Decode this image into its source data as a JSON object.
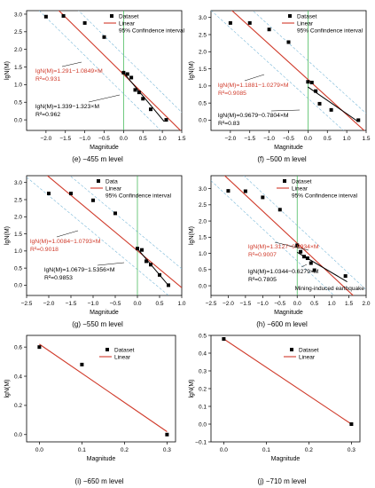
{
  "colors": {
    "data": "#000000",
    "linear": "#d03a2a",
    "ci": "#7ab8d8",
    "vline": "#34b34a",
    "annotation_red": "#d03a2a",
    "annotation_black": "#000000"
  },
  "chart_data": [
    {
      "id": "e",
      "type": "scatter",
      "caption": "(e) −455 m level",
      "xlabel": "Magnitude",
      "ylabel": "lgN(M)",
      "xlim": [
        -2.5,
        1.5
      ],
      "ylim": [
        -0.3,
        3.1
      ],
      "xticks": [
        -2.0,
        -1.5,
        -1.0,
        -0.5,
        0.0,
        0.5,
        1.0,
        1.5
      ],
      "yticks": [
        0.0,
        0.5,
        1.0,
        1.5,
        2.0,
        2.5,
        3.0
      ],
      "legend": [
        "Dataset",
        "Linear",
        "95% Confindence interval"
      ],
      "points": [
        [
          -2.0,
          2.93
        ],
        [
          -1.55,
          2.95
        ],
        [
          -1.0,
          2.75
        ],
        [
          -0.5,
          2.35
        ],
        [
          0.0,
          1.34
        ],
        [
          0.1,
          1.3
        ],
        [
          0.2,
          1.2
        ],
        [
          0.3,
          0.85
        ],
        [
          0.4,
          0.78
        ],
        [
          0.5,
          0.6
        ],
        [
          0.7,
          0.3
        ],
        [
          1.1,
          0.0
        ]
      ],
      "linear": {
        "intercept": 1.291,
        "slope": -1.0849
      },
      "ci_band": 0.55,
      "black_fit": {
        "intercept": 1.339,
        "slope": -1.323,
        "x": [
          0.0,
          1.05
        ]
      },
      "vline_x": 0.0,
      "annot_red": {
        "equation": "lgN(M)=1.291−1.0849×M",
        "r2": "R²=0.931"
      },
      "annot_black": {
        "equation": "lgN(M)=1.339−1.323×M",
        "r2": "R²=0.962"
      }
    },
    {
      "id": "f",
      "type": "scatter",
      "caption": "(f) −500 m level",
      "xlabel": "Magnitude",
      "ylabel": "lgN(M)",
      "xlim": [
        -2.5,
        1.5
      ],
      "ylim": [
        -0.3,
        3.2
      ],
      "xticks": [
        -2.0,
        -1.5,
        -1.0,
        -0.5,
        0.0,
        0.5,
        1.0,
        1.5
      ],
      "yticks": [
        0.0,
        0.5,
        1.0,
        1.5,
        2.0,
        2.5,
        3.0
      ],
      "legend": [
        "Dataset",
        "Linear",
        "95% Confindence interval"
      ],
      "points": [
        [
          -2.0,
          2.84
        ],
        [
          -1.5,
          2.84
        ],
        [
          -1.0,
          2.65
        ],
        [
          -0.5,
          2.28
        ],
        [
          0.0,
          1.12
        ],
        [
          0.1,
          1.1
        ],
        [
          0.2,
          0.85
        ],
        [
          0.3,
          0.48
        ],
        [
          0.6,
          0.3
        ],
        [
          1.3,
          0.0
        ]
      ],
      "linear": {
        "intercept": 1.1881,
        "slope": -1.0279
      },
      "ci_band": 0.55,
      "black_fit": {
        "intercept": 0.9679,
        "slope": -0.7804,
        "x": [
          0.0,
          1.3
        ]
      },
      "vline_x": 0.0,
      "annot_red": {
        "equation": "lgN(M)=1.1881−1.0279×M",
        "r2": "R²=0.9085"
      },
      "annot_black": {
        "equation": "lgN(M)=0.9679−0.7804×M",
        "r2": "R²=0.83"
      }
    },
    {
      "id": "g",
      "type": "scatter",
      "caption": "(g) −550 m level",
      "xlabel": "Magnitude",
      "ylabel": "lgN(M)",
      "xlim": [
        -2.5,
        1.0
      ],
      "ylim": [
        -0.3,
        3.2
      ],
      "xticks": [
        -2.5,
        -2.0,
        -1.5,
        -1.0,
        -0.5,
        0.0,
        0.5,
        1.0
      ],
      "yticks": [
        0.0,
        0.5,
        1.0,
        1.5,
        2.0,
        2.5,
        3.0
      ],
      "legend": [
        "Data",
        "Linear",
        "95% Confindence interval"
      ],
      "points": [
        [
          -2.0,
          2.68
        ],
        [
          -1.5,
          2.68
        ],
        [
          -1.0,
          2.48
        ],
        [
          -0.5,
          2.1
        ],
        [
          0.0,
          1.07
        ],
        [
          0.1,
          1.03
        ],
        [
          0.2,
          0.7
        ],
        [
          0.3,
          0.6
        ],
        [
          0.5,
          0.3
        ],
        [
          0.7,
          0.0
        ]
      ],
      "linear": {
        "intercept": 1.0084,
        "slope": -1.0793
      },
      "ci_band": 0.55,
      "black_fit": {
        "intercept": 1.0679,
        "slope": -1.5356,
        "x": [
          0.0,
          0.7
        ]
      },
      "vline_x": 0.0,
      "annot_red": {
        "equation": "lgN(M)=1.0084−1.0793×M",
        "r2": "R²=0.9018"
      },
      "annot_black": {
        "equation": "lgN(M)=1.0679−1.5356×M",
        "r2": "R²=0.9853"
      }
    },
    {
      "id": "h",
      "type": "scatter",
      "caption": "(h) −600 m level",
      "xlabel": "Magnitude",
      "ylabel": "lgN(M)",
      "xlim": [
        -2.5,
        2.0
      ],
      "ylim": [
        -0.3,
        3.4
      ],
      "xticks": [
        -2.5,
        -2.0,
        -1.5,
        -1.0,
        -0.5,
        0.0,
        0.5,
        1.0,
        1.5,
        2.0
      ],
      "yticks": [
        0.0,
        0.5,
        1.0,
        1.5,
        2.0,
        2.5,
        3.0
      ],
      "legend": [
        "Dataset",
        "Linear",
        "95% Confindence interval"
      ],
      "points": [
        [
          -2.0,
          2.93
        ],
        [
          -1.5,
          2.92
        ],
        [
          -1.0,
          2.73
        ],
        [
          -0.5,
          2.35
        ],
        [
          0.0,
          1.25
        ],
        [
          0.1,
          1.05
        ],
        [
          0.2,
          0.9
        ],
        [
          0.3,
          0.85
        ],
        [
          0.4,
          0.7
        ],
        [
          0.5,
          0.48
        ],
        [
          1.4,
          0.3
        ]
      ],
      "linear": {
        "intercept": 1.3127,
        "slope": -0.9934
      },
      "ci_band": 0.55,
      "black_fit": {
        "intercept": 1.0344,
        "slope": -0.6279,
        "x": [
          0.0,
          1.45
        ]
      },
      "vline_x": 0.0,
      "annot_red": {
        "equation": "lgN(M)=1.3127−0.9934×M",
        "r2": "R²=0.9007"
      },
      "annot_black": {
        "equation": "lgN(M)=1.0344−0.6279×M",
        "r2": "R²=0.7805"
      },
      "annot_extra": "Mining-induced earthquake"
    },
    {
      "id": "i",
      "type": "scatter",
      "caption": "(i) −650 m level",
      "xlabel": "Magnitude",
      "ylabel": "lgN(M)",
      "xlim": [
        -0.03,
        0.32
      ],
      "ylim": [
        -0.05,
        0.68
      ],
      "xticks": [
        0.0,
        0.1,
        0.2,
        0.3
      ],
      "yticks": [
        0.0,
        0.2,
        0.4,
        0.6
      ],
      "legend": [
        "Dataset",
        "Linear"
      ],
      "points": [
        [
          0.0,
          0.6
        ],
        [
          0.1,
          0.48
        ],
        [
          0.3,
          0.0
        ]
      ],
      "linear": {
        "intercept": 0.62,
        "slope": -2.0,
        "x": [
          0.0,
          0.3
        ]
      }
    },
    {
      "id": "j",
      "type": "scatter",
      "caption": "(j) −710 m level",
      "xlabel": "Magnitude",
      "ylabel": "lgN(M)",
      "xlim": [
        -0.03,
        0.32
      ],
      "ylim": [
        -0.1,
        0.5
      ],
      "xticks": [
        0.0,
        0.1,
        0.2,
        0.3
      ],
      "yticks": [
        -0.1,
        0.0,
        0.1,
        0.2,
        0.3,
        0.4,
        0.5
      ],
      "legend": [
        "Dataset",
        "Linear"
      ],
      "points": [
        [
          0.0,
          0.48
        ],
        [
          0.3,
          0.0
        ]
      ],
      "linear": {
        "intercept": 0.48,
        "slope": -1.6,
        "x": [
          0.0,
          0.3
        ]
      }
    }
  ]
}
